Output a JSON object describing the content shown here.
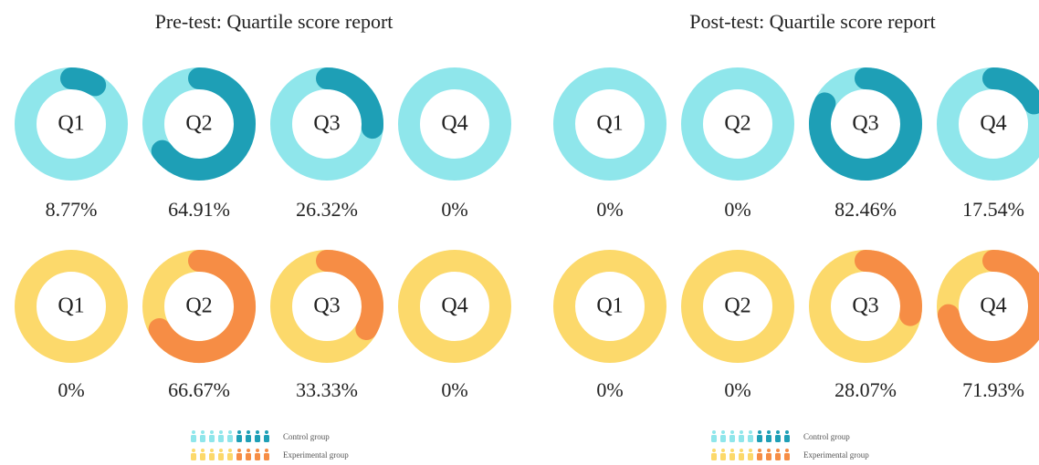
{
  "chart_data": [
    {
      "type": "donut",
      "title": "Pre-test: Quartile score report",
      "categories": [
        "Q1",
        "Q2",
        "Q3",
        "Q4"
      ],
      "series": [
        {
          "name": "Control group",
          "color": "#1e9fb6",
          "track_color": "#8fe6eb",
          "values": [
            8.77,
            64.91,
            26.32,
            0
          ],
          "value_labels": [
            "8.77%",
            "64.91%",
            "26.32%",
            "0%"
          ]
        },
        {
          "name": "Experimental group",
          "color": "#f68d45",
          "track_color": "#fcd96b",
          "values": [
            0,
            66.67,
            33.33,
            0
          ],
          "value_labels": [
            "0%",
            "66.67%",
            "33.33%",
            "0%"
          ]
        }
      ]
    },
    {
      "type": "donut",
      "title": "Post-test: Quartile score report",
      "categories": [
        "Q1",
        "Q2",
        "Q3",
        "Q4"
      ],
      "series": [
        {
          "name": "Control group",
          "color": "#1e9fb6",
          "track_color": "#8fe6eb",
          "values": [
            0,
            0,
            82.46,
            17.54
          ],
          "value_labels": [
            "0%",
            "0%",
            "82.46%",
            "17.54%"
          ]
        },
        {
          "name": "Experimental group",
          "color": "#f68d45",
          "track_color": "#fcd96b",
          "values": [
            0,
            0,
            28.07,
            71.93
          ],
          "value_labels": [
            "0%",
            "0%",
            "28.07%",
            "71.93%"
          ]
        }
      ]
    }
  ]
}
